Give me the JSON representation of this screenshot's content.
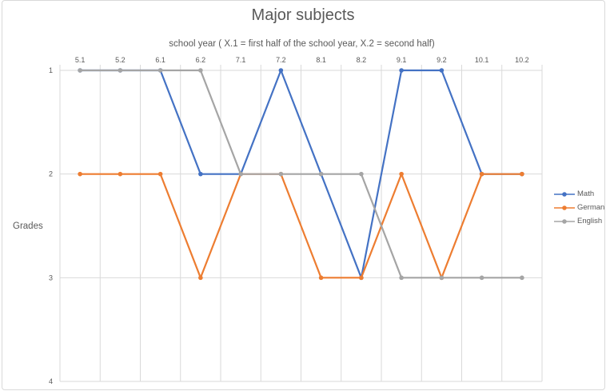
{
  "chart_data": {
    "type": "line",
    "title": "Major subjects",
    "xlabel": "school year ( X.1 = first half of the school year, X.2 = second half)",
    "ylabel": "Grades",
    "categories": [
      "5.1",
      "5.2",
      "6.1",
      "6.2",
      "7.1",
      "7.2",
      "8.1",
      "8.2",
      "9.1",
      "9.2",
      "10.1",
      "10.2"
    ],
    "series": [
      {
        "name": "Math",
        "color": "#4472C4",
        "values": [
          1,
          1,
          1,
          2,
          2,
          1,
          2,
          3,
          1,
          1,
          2,
          2
        ]
      },
      {
        "name": "German",
        "color": "#ED7D31",
        "values": [
          2,
          2,
          2,
          3,
          2,
          2,
          3,
          3,
          2,
          3,
          2,
          2
        ]
      },
      {
        "name": "English",
        "color": "#A5A5A5",
        "values": [
          1,
          1,
          1,
          1,
          2,
          2,
          2,
          2,
          3,
          3,
          3,
          3
        ]
      }
    ],
    "y_ticks": [
      1,
      2,
      3,
      4
    ],
    "ylim": [
      1,
      4
    ],
    "y_axis_reversed": true,
    "grid": true,
    "legend_position": "right",
    "gridline_color": "#d9d9d9",
    "text_color": "#595959",
    "marker": "circle"
  }
}
